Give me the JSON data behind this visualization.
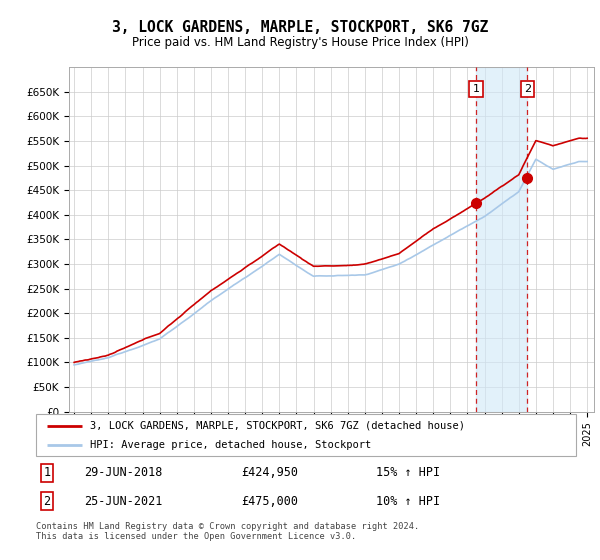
{
  "title": "3, LOCK GARDENS, MARPLE, STOCKPORT, SK6 7GZ",
  "subtitle": "Price paid vs. HM Land Registry's House Price Index (HPI)",
  "sale1_date": "29-JUN-2018",
  "sale1_price": 424950,
  "sale1_year": 2018.5,
  "sale2_date": "25-JUN-2021",
  "sale2_price": 475000,
  "sale2_year": 2021.5,
  "sale1_hpi_pct": "15%",
  "sale2_hpi_pct": "10%",
  "legend1": "3, LOCK GARDENS, MARPLE, STOCKPORT, SK6 7GZ (detached house)",
  "legend2": "HPI: Average price, detached house, Stockport",
  "footer": "Contains HM Land Registry data © Crown copyright and database right 2024.\nThis data is licensed under the Open Government Licence v3.0.",
  "hpi_color": "#a8c8e8",
  "price_color": "#cc0000",
  "shade_color": "#d0e8f8",
  "yticks": [
    0,
    50000,
    100000,
    150000,
    200000,
    250000,
    300000,
    350000,
    400000,
    450000,
    500000,
    550000,
    600000,
    650000
  ],
  "start_year": 1995,
  "end_year": 2025
}
